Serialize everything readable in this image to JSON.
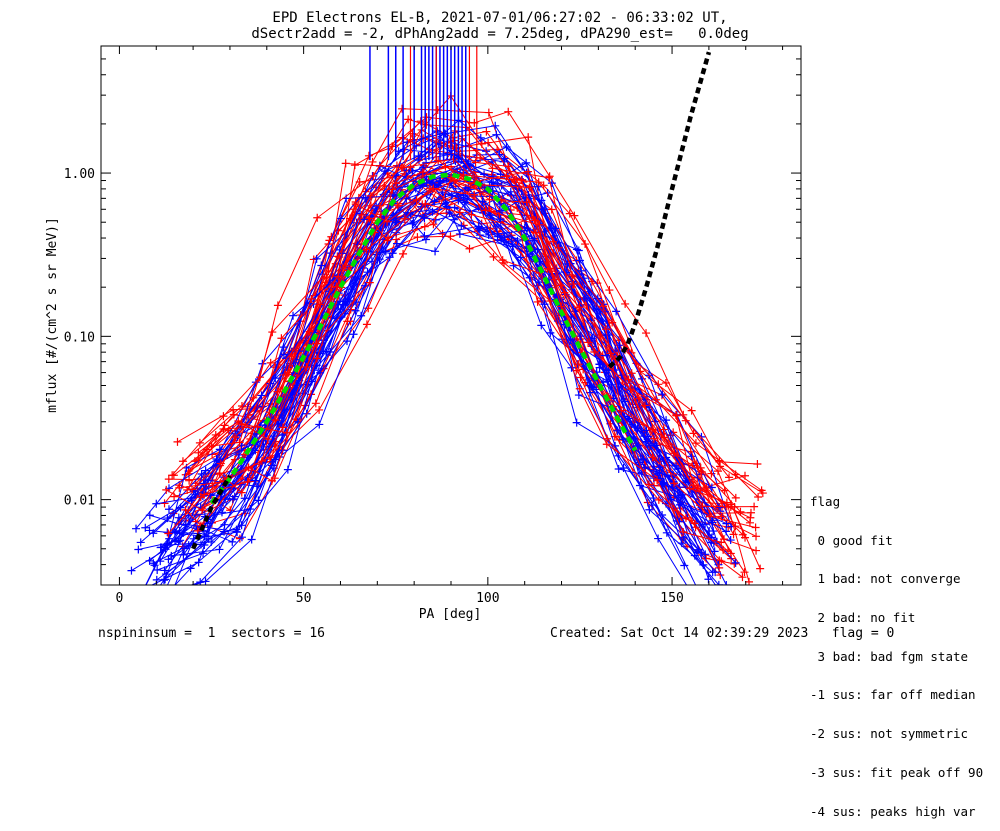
{
  "title_line1": "EPD Electrons EL-B, 2021-07-01/06:27:02 - 06:33:02 UT,",
  "title_line2": "dSectr2add = -2, dPhAng2add = 7.25deg, dPA290_est=   0.0deg",
  "chart_data": {
    "type": "line",
    "xlabel": "PA [deg]",
    "ylabel": "mflux [#/(cm^2 s sr MeV)]",
    "xlim": [
      -5,
      185
    ],
    "ylim": [
      0.003,
      6.0
    ],
    "yscale": "log",
    "xticks": [
      0,
      50,
      100,
      150
    ],
    "yticks": [
      {
        "value": 0.01,
        "label": "0.01"
      },
      {
        "value": 0.1,
        "label": "0.10"
      },
      {
        "value": 1.0,
        "label": "1.00"
      }
    ],
    "series": [
      {
        "color": "#0000ff",
        "x": [
          10,
          20,
          30,
          40,
          50,
          60,
          70,
          80,
          90,
          100,
          110,
          120,
          130,
          140,
          150,
          160
        ],
        "y": [
          0.0045,
          0.0075,
          0.013,
          0.03,
          0.08,
          0.22,
          0.55,
          0.85,
          1.0,
          0.85,
          0.55,
          0.22,
          0.08,
          0.03,
          0.013,
          0.006
        ]
      },
      {
        "color": "#ff0000",
        "x": [
          20,
          30,
          40,
          50,
          60,
          70,
          80,
          90,
          100,
          110,
          120,
          130,
          140,
          150,
          160,
          170
        ],
        "y": [
          0.012,
          0.016,
          0.025,
          0.07,
          0.25,
          0.65,
          0.95,
          1.05,
          0.9,
          0.6,
          0.25,
          0.09,
          0.04,
          0.02,
          0.01,
          0.007
        ]
      },
      {
        "name": "fit",
        "color": "#00dd00",
        "x": [
          25,
          30,
          35,
          40,
          45,
          50,
          55,
          60,
          65,
          70,
          75,
          80,
          85,
          90,
          95,
          100,
          105,
          110,
          115,
          120,
          125,
          130,
          135,
          140
        ],
        "y": [
          0.0095,
          0.0135,
          0.02,
          0.03,
          0.047,
          0.075,
          0.12,
          0.2,
          0.32,
          0.5,
          0.7,
          0.85,
          0.95,
          0.98,
          0.92,
          0.8,
          0.6,
          0.4,
          0.24,
          0.14,
          0.085,
          0.052,
          0.032,
          0.02
        ]
      },
      {
        "name": "est",
        "color": "#000000",
        "x": [
          20,
          25,
          30,
          133,
          136,
          138,
          140,
          143,
          146,
          150,
          155,
          160
        ],
        "y": [
          0.005,
          0.009,
          0.014,
          0.065,
          0.075,
          0.09,
          0.12,
          0.2,
          0.35,
          0.8,
          2.2,
          5.5
        ]
      }
    ],
    "spikes": {
      "baseline_value": 1.2,
      "blue_x": [
        68,
        73,
        75,
        77,
        80,
        82,
        83,
        84,
        85,
        86,
        87,
        88,
        89,
        90,
        91,
        92,
        93,
        94
      ],
      "red_x": [
        79,
        86,
        95,
        97
      ]
    }
  },
  "legend": {
    "title": "flag",
    "items": [
      " 0 good fit",
      " 1 bad: not converge",
      " 2 bad: no fit",
      " 3 bad: bad fgm state",
      "-1 sus: far off median",
      "-2 sus: not symmetric",
      "-3 sus: fit peak off 90",
      "-4 sus: peaks high var"
    ]
  },
  "footer": {
    "left": "nspininsum =  1  sectors = 16",
    "right": "Created: Sat Oct 14 02:39:29 2023   flag = 0"
  }
}
